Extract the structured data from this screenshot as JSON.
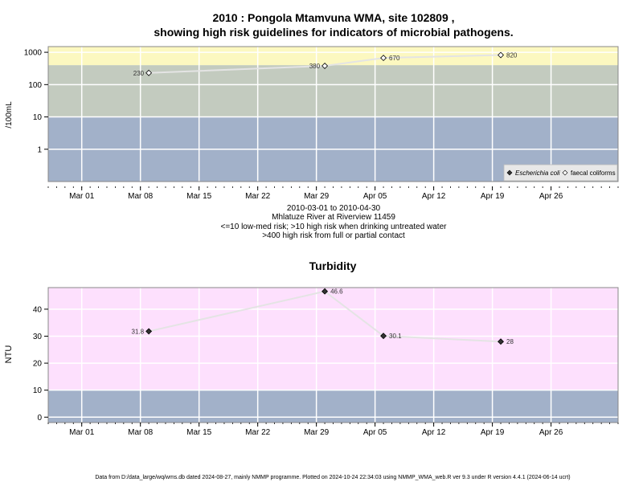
{
  "chart_data": [
    {
      "type": "line",
      "title_line1": "2010 : Pongola Mtamvuna WMA, site 102809 ,",
      "title_line2": "showing high risk guidelines for indicators of microbial pathogens.",
      "ylabel": "/100mL",
      "yscale": "log",
      "yticks": [
        "1",
        "10",
        "100",
        "1000"
      ],
      "ytick_values": [
        1,
        10,
        100,
        1000
      ],
      "ylim": [
        0.1,
        1500
      ],
      "x_start": "2010-02-25",
      "xlim": [
        "2010-02-25",
        "2010-05-04"
      ],
      "xticks": [
        "Mar 01",
        "Mar 08",
        "Mar 15",
        "Mar 22",
        "Mar 29",
        "Apr 05",
        "Apr 12",
        "Apr 19",
        "Apr 26"
      ],
      "xtick_dates": [
        "2010-03-01",
        "2010-03-08",
        "2010-03-15",
        "2010-03-22",
        "2010-03-29",
        "2010-04-05",
        "2010-04-12",
        "2010-04-19",
        "2010-04-26"
      ],
      "bands": [
        {
          "from": 0.1,
          "to": 10,
          "color": "#a2b1c9",
          "meaning": "low-med risk"
        },
        {
          "from": 10,
          "to": 400,
          "color": "#c3cbbf",
          "meaning": "high risk drinking"
        },
        {
          "from": 400,
          "to": 1500,
          "color": "#fcf8c0",
          "meaning": "high risk contact"
        }
      ],
      "series": [
        {
          "name": "Escherichia coli",
          "marker": "filled-diamond",
          "x": [],
          "values": []
        },
        {
          "name": "faecal coliforms",
          "marker": "open-diamond",
          "x": [
            "2010-03-09",
            "2010-03-30",
            "2010-04-06",
            "2010-04-20"
          ],
          "values": [
            230,
            380,
            670,
            820
          ],
          "labels": [
            "230",
            "380",
            "670",
            "820"
          ]
        }
      ],
      "legend": "bottom-right",
      "grid": true,
      "caption_lines": [
        "2010-03-01 to 2010-04-30",
        "Mhlatuze River at Riverview 11459",
        "<=10 low-med risk; >10 high risk when drinking untreated water",
        ">400 high risk from full or partial contact"
      ]
    },
    {
      "type": "line",
      "title": "Turbidity",
      "ylabel": "NTU",
      "yscale": "linear",
      "yticks": [
        "0",
        "10",
        "20",
        "30",
        "40"
      ],
      "ytick_values": [
        0,
        10,
        20,
        30,
        40
      ],
      "ylim": [
        -2,
        48
      ],
      "xlim": [
        "2010-02-25",
        "2010-05-04"
      ],
      "xticks": [
        "Mar 01",
        "Mar 08",
        "Mar 15",
        "Mar 22",
        "Mar 29",
        "Apr 05",
        "Apr 12",
        "Apr 19",
        "Apr 26"
      ],
      "bands": [
        {
          "from": -2,
          "to": 10,
          "color": "#a2b1c9"
        },
        {
          "from": 10,
          "to": 48,
          "color": "#fde0fd"
        }
      ],
      "series": [
        {
          "marker": "filled-diamond",
          "x": [
            "2010-03-09",
            "2010-03-30",
            "2010-04-06",
            "2010-04-20"
          ],
          "values": [
            31.8,
            46.6,
            30.1,
            28
          ],
          "labels": [
            "31.8",
            "46.6",
            "30.1",
            "28"
          ]
        }
      ],
      "grid": true
    }
  ],
  "footer": "Data from D:/data_large/wq/wms.db dated 2024-08-27, mainly NMMP programme. Plotted on 2024-10-24 22:34:03 using NMMP_WMA_web.R ver 9.3 under R version 4.4.1 (2024-06-14 ucrt)"
}
